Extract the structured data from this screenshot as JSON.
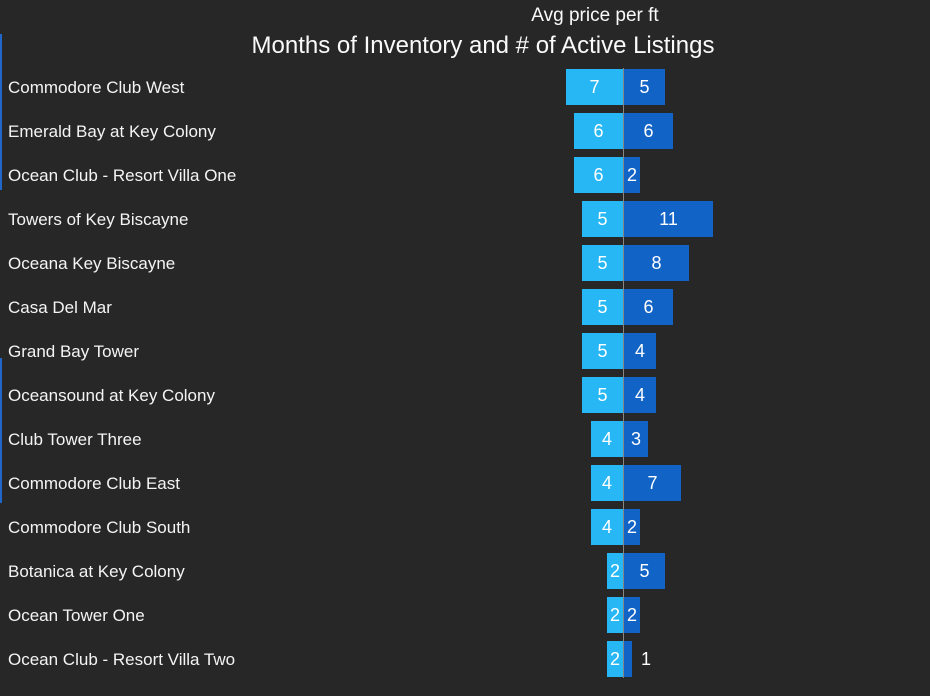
{
  "titles": {
    "top": "Avg price per ft",
    "main": "Months of Inventory and # of Active Listings"
  },
  "chart_data": {
    "type": "bar",
    "orientation": "horizontal-diverging",
    "title": "Months of Inventory and # of Active Listings",
    "subtitle_above": "Avg price per ft",
    "categories": [
      "Commodore Club West",
      "Emerald Bay at Key Colony",
      "Ocean Club - Resort Villa One",
      "Towers of Key Biscayne",
      "Oceana Key Biscayne",
      "Casa Del Mar",
      "Grand Bay Tower",
      "Oceansound at Key Colony",
      "Club Tower Three",
      "Commodore Club East",
      "Commodore Club South",
      "Botanica at Key Colony",
      "Ocean Tower One",
      "Ocean Club - Resort Villa Two"
    ],
    "series": [
      {
        "name": "Months of Inventory",
        "side": "left",
        "color": "#27b7f4",
        "values": [
          7,
          6,
          6,
          5,
          5,
          5,
          5,
          5,
          4,
          4,
          4,
          2,
          2,
          2
        ]
      },
      {
        "name": "# of Active Listings",
        "side": "right",
        "color": "#1263c6",
        "values": [
          5,
          6,
          2,
          11,
          8,
          6,
          4,
          4,
          3,
          7,
          2,
          5,
          2,
          1
        ]
      }
    ],
    "value_labels": "shown inside bars, outside bar when bar too small",
    "legend": "none",
    "grid": "off",
    "baseline_color": "#858585",
    "background_color": "#272727",
    "category_label_color": "#f4f4f4",
    "value_label_color": "#ffffff"
  },
  "decorations": {
    "left_accent_strips": [
      {
        "color": "#2166c9"
      },
      {
        "color": "#2166c9"
      }
    ]
  }
}
